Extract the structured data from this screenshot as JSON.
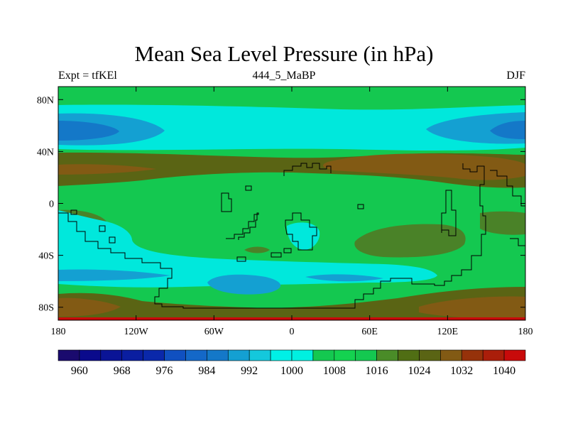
{
  "title": "Mean Sea Level Pressure (in hPa)",
  "subtitle_left": "Expt = tfKEl",
  "subtitle_center": "444_5_MaBP",
  "subtitle_right": "DJF",
  "x_ticks": [
    {
      "value": -180,
      "label": "180"
    },
    {
      "value": -120,
      "label": "120W"
    },
    {
      "value": -60,
      "label": "60W"
    },
    {
      "value": 0,
      "label": "0"
    },
    {
      "value": 60,
      "label": "60E"
    },
    {
      "value": 120,
      "label": "120E"
    },
    {
      "value": 180,
      "label": "180"
    }
  ],
  "y_ticks": [
    {
      "value": 80,
      "label": "80N"
    },
    {
      "value": 40,
      "label": "40N"
    },
    {
      "value": 0,
      "label": "0"
    },
    {
      "value": -40,
      "label": "40S"
    },
    {
      "value": -80,
      "label": "80S"
    }
  ],
  "map_extent": {
    "lon": [
      -180,
      180
    ],
    "lat": [
      -90,
      90
    ]
  },
  "colorbar": {
    "levels": [
      956,
      960,
      964,
      968,
      972,
      976,
      980,
      984,
      988,
      992,
      996,
      1000,
      1004,
      1008,
      1012,
      1016,
      1020,
      1024,
      1028,
      1032,
      1036,
      1040
    ],
    "labels": [
      "960",
      "968",
      "976",
      "984",
      "992",
      "1000",
      "1008",
      "1016",
      "1024",
      "1032",
      "1040"
    ],
    "colors": [
      "#1a0a6e",
      "#0a0a8c",
      "#0a1496",
      "#0a1ea0",
      "#0a28aa",
      "#1050c0",
      "#1468c8",
      "#1478c8",
      "#14a0d2",
      "#14c8dc",
      "#00f0e6",
      "#00f0e0",
      "#14c850",
      "#14d250",
      "#14c850",
      "#4a8c28",
      "#506e14",
      "#5a6414",
      "#825a14",
      "#96320a",
      "#aa1e0a",
      "#c80a0a"
    ]
  },
  "palette": {
    "bg_green": "#14c850",
    "cyan": "#00e8dc",
    "light_blue": "#14a0d2",
    "blue": "#1478c8",
    "dark_blue": "#0a50b4",
    "olive": "#5a6414",
    "light_olive": "#4a8228",
    "brown": "#825a14",
    "red": "#c80a0a",
    "coast": "#000000"
  }
}
